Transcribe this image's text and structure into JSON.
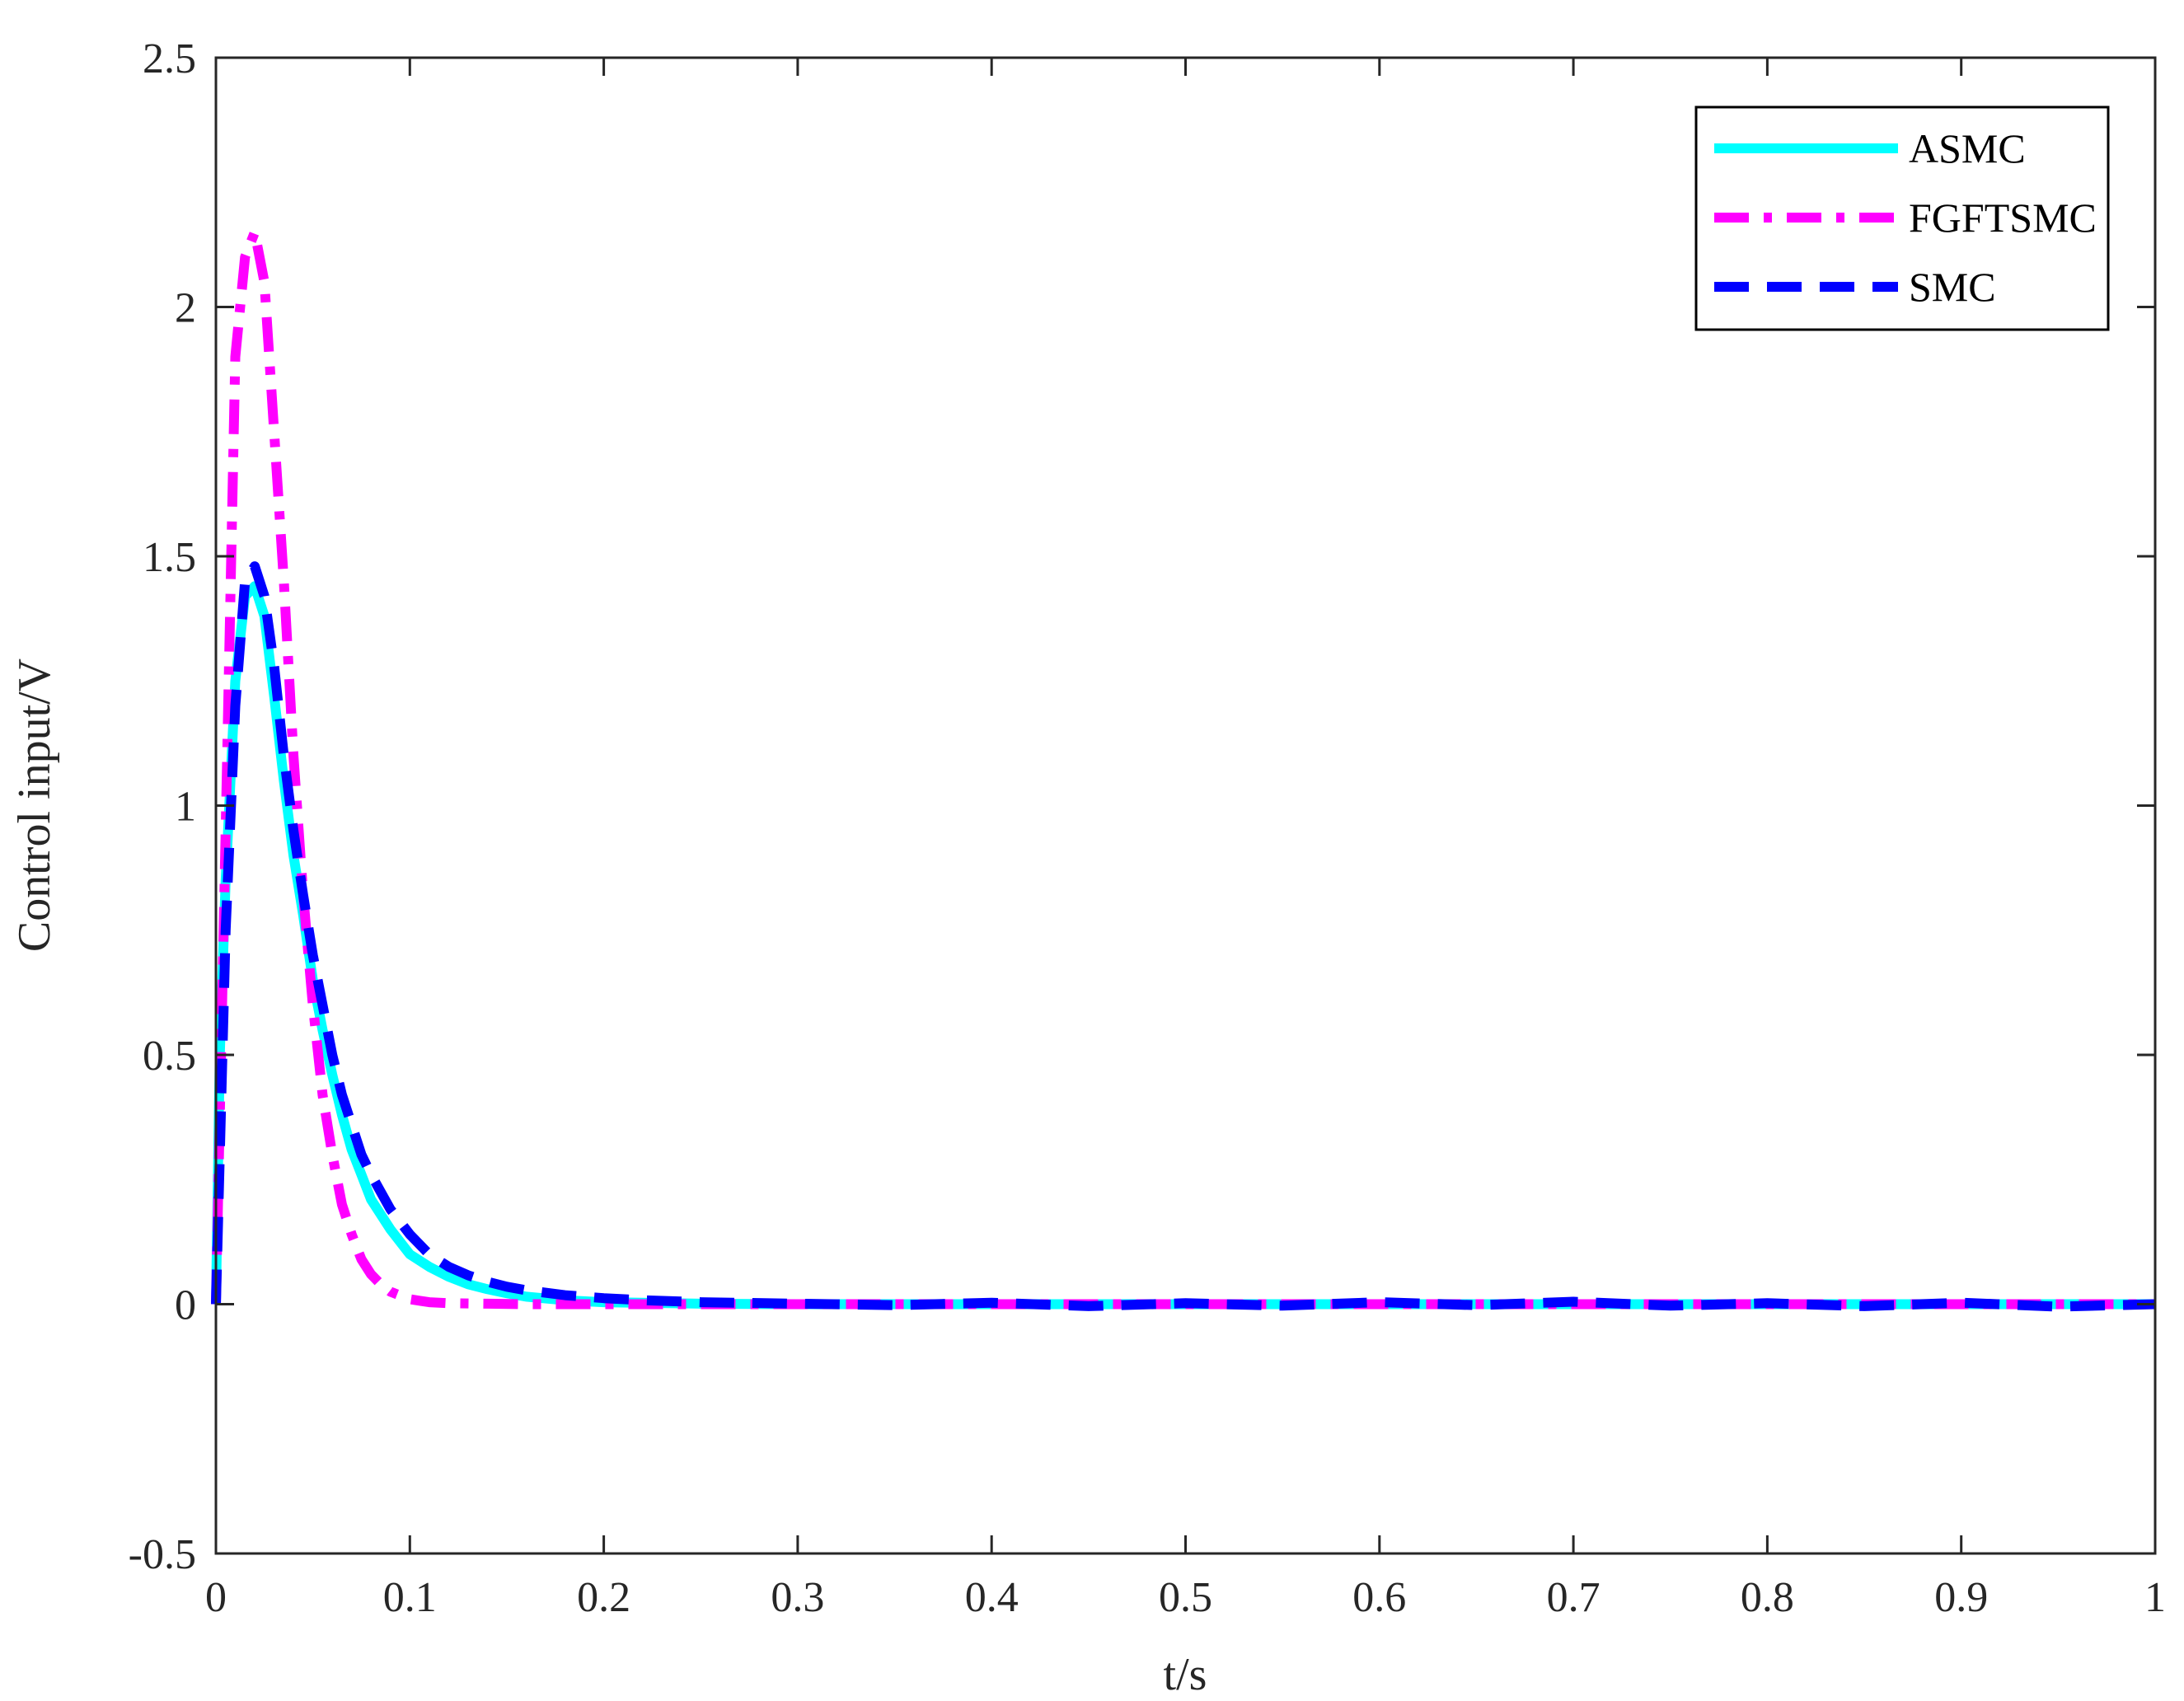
{
  "chart_data": {
    "type": "line",
    "title": "",
    "xlabel": "t/s",
    "ylabel": "Control input/V",
    "xlim": [
      0,
      1
    ],
    "ylim": [
      -0.5,
      2.5
    ],
    "xticks": [
      0,
      0.1,
      0.2,
      0.3,
      0.4,
      0.5,
      0.6,
      0.7,
      0.8,
      0.9,
      1
    ],
    "xtick_labels": [
      "0",
      "0.1",
      "0.2",
      "0.3",
      "0.4",
      "0.5",
      "0.6",
      "0.7",
      "0.8",
      "0.9",
      "1"
    ],
    "yticks": [
      -0.5,
      0,
      0.5,
      1,
      1.5,
      2,
      2.5
    ],
    "ytick_labels": [
      "-0.5",
      "0",
      "0.5",
      "1",
      "1.5",
      "2",
      "2.5"
    ],
    "grid": false,
    "legend_position": "top-right",
    "series": [
      {
        "name": "ASMC",
        "color": "#00ffff",
        "style": "solid",
        "x": [
          0,
          0.002,
          0.005,
          0.01,
          0.015,
          0.02,
          0.025,
          0.03,
          0.035,
          0.04,
          0.045,
          0.05,
          0.055,
          0.06,
          0.065,
          0.07,
          0.075,
          0.08,
          0.09,
          0.1,
          0.11,
          0.12,
          0.13,
          0.14,
          0.15,
          0.16,
          0.18,
          0.2,
          0.25,
          0.3,
          1.0
        ],
        "y": [
          0,
          0.5,
          0.85,
          1.25,
          1.42,
          1.44,
          1.38,
          1.22,
          1.05,
          0.9,
          0.78,
          0.65,
          0.55,
          0.46,
          0.38,
          0.31,
          0.26,
          0.21,
          0.15,
          0.1,
          0.075,
          0.055,
          0.04,
          0.03,
          0.022,
          0.015,
          0.008,
          0.004,
          0.001,
          0,
          0
        ]
      },
      {
        "name": "FGFTSMC",
        "color": "#ff00ff",
        "style": "dashdot",
        "x": [
          0,
          0.005,
          0.01,
          0.015,
          0.02,
          0.025,
          0.03,
          0.035,
          0.04,
          0.045,
          0.05,
          0.055,
          0.06,
          0.065,
          0.07,
          0.075,
          0.08,
          0.085,
          0.09,
          0.1,
          0.11,
          0.12,
          0.14,
          0.16,
          0.2,
          1.0
        ],
        "y": [
          0,
          0.95,
          1.9,
          2.1,
          2.15,
          2.05,
          1.75,
          1.45,
          1.1,
          0.82,
          0.6,
          0.42,
          0.3,
          0.2,
          0.14,
          0.09,
          0.06,
          0.04,
          0.025,
          0.01,
          0.004,
          0.002,
          0.001,
          0,
          0,
          0
        ]
      },
      {
        "name": "SMC",
        "color": "#0000ff",
        "style": "dashed",
        "x": [
          0,
          0.005,
          0.01,
          0.015,
          0.02,
          0.025,
          0.03,
          0.035,
          0.04,
          0.045,
          0.05,
          0.055,
          0.06,
          0.065,
          0.07,
          0.075,
          0.08,
          0.09,
          0.1,
          0.11,
          0.12,
          0.13,
          0.14,
          0.15,
          0.16,
          0.18,
          0.2,
          0.22,
          0.25,
          0.3,
          0.35,
          0.4,
          0.45,
          0.5,
          0.55,
          0.6,
          0.65,
          0.7,
          0.75,
          0.8,
          0.85,
          0.9,
          0.95,
          1.0
        ],
        "y": [
          0,
          0.75,
          1.2,
          1.45,
          1.48,
          1.42,
          1.28,
          1.1,
          0.95,
          0.82,
          0.7,
          0.6,
          0.5,
          0.42,
          0.36,
          0.3,
          0.26,
          0.19,
          0.14,
          0.1,
          0.075,
          0.058,
          0.045,
          0.035,
          0.028,
          0.018,
          0.012,
          0.008,
          0.004,
          0.001,
          -0.002,
          0.003,
          -0.004,
          0.002,
          -0.003,
          0.004,
          -0.002,
          0.005,
          -0.003,
          0.002,
          -0.004,
          0.003,
          -0.005,
          0
        ]
      }
    ]
  }
}
